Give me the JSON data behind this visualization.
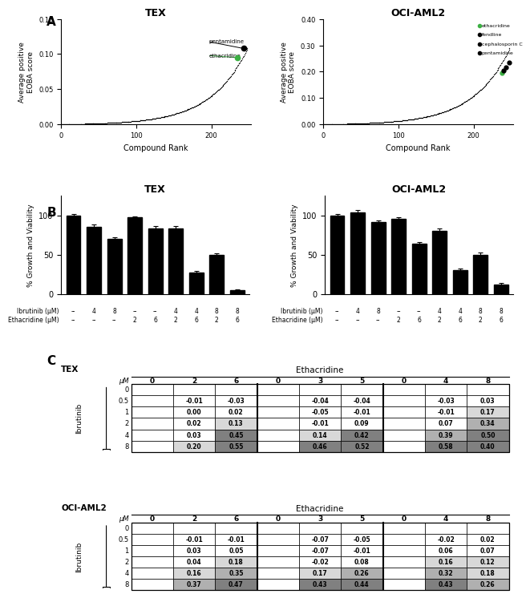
{
  "panel_a": {
    "TEX": {
      "ylim": [
        0,
        0.15
      ],
      "yticks": [
        0.0,
        0.05,
        0.1,
        0.15
      ],
      "ethacridine_rank": 235,
      "ethacridine_val": 0.095,
      "pentamidine_rank": 243,
      "pentamidine_val": 0.108,
      "n_compounds": 248
    },
    "OCI_AML2": {
      "ylim": [
        0,
        0.4
      ],
      "yticks": [
        0.0,
        0.1,
        0.2,
        0.3,
        0.4
      ],
      "ethacridine_rank": 238,
      "ethacridine_val": 0.195,
      "fendline_rank": 240,
      "fendline_val": 0.205,
      "cephalosporin_rank": 243,
      "cephalosporin_val": 0.215,
      "pentamidine_rank": 247,
      "pentamidine_val": 0.235,
      "n_compounds": 248
    }
  },
  "panel_b": {
    "TEX": {
      "bars": [
        100,
        85,
        70,
        98,
        83,
        83,
        27,
        50,
        5
      ],
      "errors": [
        2,
        3,
        2,
        1,
        3,
        3,
        2,
        2,
        1
      ],
      "ibrutinib": [
        "--",
        "4",
        "8",
        "--",
        "--",
        "4",
        "4",
        "8",
        "8"
      ],
      "ethacridine": [
        "--",
        "--",
        "--",
        "2",
        "6",
        "2",
        "6",
        "2",
        "6"
      ]
    },
    "OCI_AML2": {
      "bars": [
        100,
        104,
        91,
        96,
        64,
        80,
        30,
        50,
        12
      ],
      "errors": [
        2,
        3,
        2,
        2,
        2,
        3,
        2,
        3,
        2
      ],
      "ibrutinib": [
        "--",
        "4",
        "8",
        "--",
        "--",
        "4",
        "4",
        "8",
        "8"
      ],
      "ethacridine": [
        "--",
        "--",
        "--",
        "2",
        "6",
        "2",
        "6",
        "2",
        "6"
      ]
    }
  },
  "panel_c": {
    "TEX": {
      "col_header": [
        "0",
        "2",
        "6",
        "0",
        "3",
        "5",
        "0",
        "4",
        "8"
      ],
      "row_header": [
        "0",
        "0.5",
        "1",
        "2",
        "4",
        "8"
      ],
      "data": [
        [
          null,
          null,
          null,
          null,
          null,
          null,
          null,
          null,
          null
        ],
        [
          null,
          -0.01,
          -0.03,
          null,
          -0.04,
          -0.04,
          null,
          -0.03,
          0.03
        ],
        [
          null,
          0.0,
          0.02,
          null,
          -0.05,
          -0.01,
          null,
          -0.01,
          0.17
        ],
        [
          null,
          0.02,
          0.13,
          null,
          -0.01,
          0.09,
          null,
          0.07,
          0.34
        ],
        [
          null,
          0.03,
          0.45,
          null,
          0.14,
          0.42,
          null,
          0.39,
          0.5
        ],
        [
          null,
          0.2,
          0.55,
          null,
          0.46,
          0.52,
          null,
          0.58,
          0.4
        ]
      ]
    },
    "OCI_AML2": {
      "col_header": [
        "0",
        "2",
        "6",
        "0",
        "3",
        "5",
        "0",
        "4",
        "8"
      ],
      "row_header": [
        "0",
        "0.5",
        "1",
        "2",
        "4",
        "8"
      ],
      "data": [
        [
          null,
          null,
          null,
          null,
          null,
          null,
          null,
          null,
          null
        ],
        [
          null,
          -0.01,
          -0.01,
          null,
          -0.07,
          -0.05,
          null,
          -0.02,
          0.02
        ],
        [
          null,
          0.03,
          0.05,
          null,
          -0.07,
          -0.01,
          null,
          0.06,
          0.07
        ],
        [
          null,
          0.04,
          0.18,
          null,
          -0.02,
          0.08,
          null,
          0.16,
          0.12
        ],
        [
          null,
          0.16,
          0.35,
          null,
          0.17,
          0.26,
          null,
          0.32,
          0.18
        ],
        [
          null,
          0.37,
          0.47,
          null,
          0.43,
          0.44,
          null,
          0.43,
          0.26
        ]
      ]
    }
  },
  "colors": {
    "ethacridine_dot": "#3cb043",
    "pentamidine_dot": "#000000"
  },
  "threshold_light": 0.1,
  "threshold_mid": 0.25,
  "threshold_dark": 0.4
}
